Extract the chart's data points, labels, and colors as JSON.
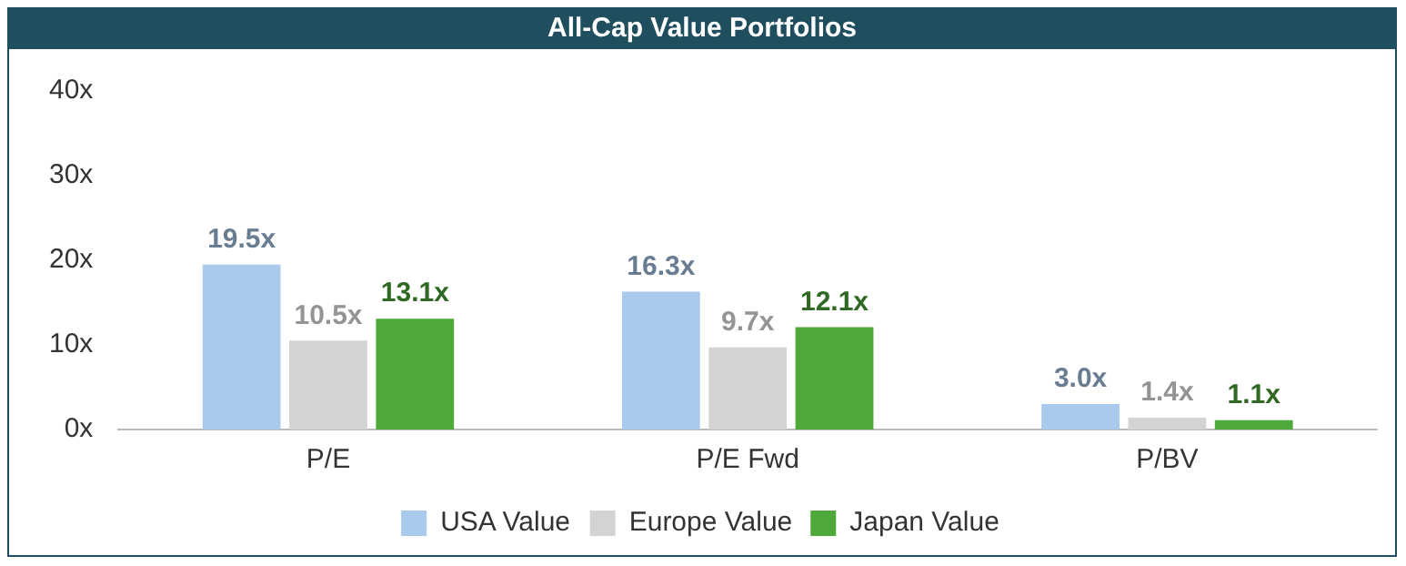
{
  "chart_data": {
    "type": "bar",
    "title": "All-Cap Value Portfolios",
    "categories": [
      "P/E",
      "P/E Fwd",
      "P/BV"
    ],
    "series": [
      {
        "name": "USA Value",
        "color": "#a9caec",
        "values": [
          19.5,
          16.3,
          3.0
        ],
        "value_labels": [
          "19.5x",
          "16.3x",
          "3.0x"
        ]
      },
      {
        "name": "Europe Value",
        "color": "#d3d3d3",
        "values": [
          10.5,
          9.7,
          1.4
        ],
        "value_labels": [
          "10.5x",
          "9.7x",
          "1.4x"
        ]
      },
      {
        "name": "Japan Value",
        "color": "#4ea93a",
        "values": [
          13.1,
          12.1,
          1.1
        ],
        "value_labels": [
          "13.1x",
          "12.1x",
          "1.1x"
        ]
      }
    ],
    "ylim": [
      0,
      40
    ],
    "yticks": [
      {
        "value": 0,
        "label": "0x"
      },
      {
        "value": 10,
        "label": "10x"
      },
      {
        "value": 20,
        "label": "20x"
      },
      {
        "value": 30,
        "label": "30x"
      },
      {
        "value": 40,
        "label": "40x"
      }
    ],
    "grid": false,
    "legend": "bottom"
  }
}
